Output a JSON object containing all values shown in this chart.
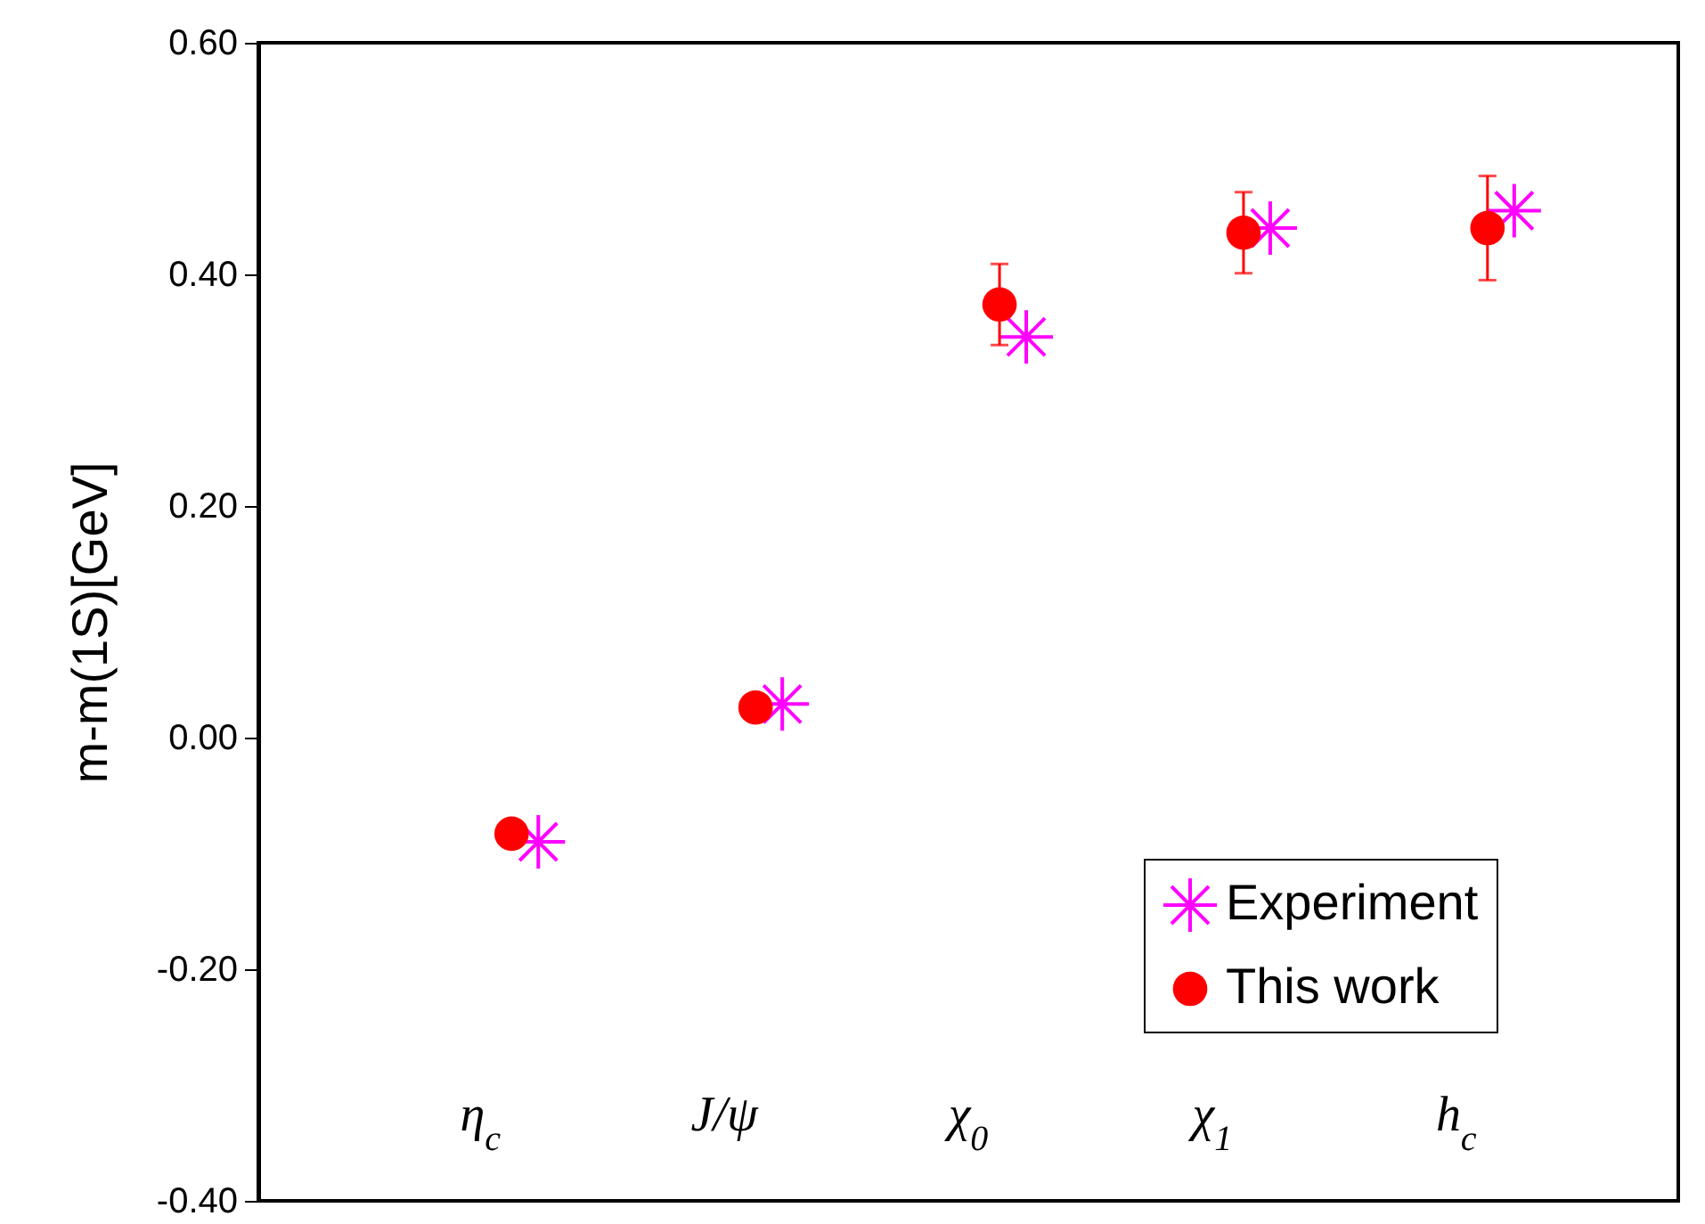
{
  "chart_data": {
    "type": "scatter",
    "ylabel": "m-m(1S)[GeV]",
    "categories": [
      "η$_{c}$",
      "J/ψ",
      "χ$_{0}$",
      "χ$_{1}$",
      "h$_{c}$"
    ],
    "ylim": [
      -0.4,
      0.6
    ],
    "yticks": [
      {
        "value": -0.4,
        "label": "-0.40"
      },
      {
        "value": -0.2,
        "label": "-0.20"
      },
      {
        "value": 0,
        "label": "0.00"
      },
      {
        "value": 0.2,
        "label": "0.20"
      },
      {
        "value": 0.4,
        "label": "0.40"
      },
      {
        "value": 0.6,
        "label": "0.60"
      }
    ],
    "grid": false,
    "legend": "bottom right",
    "series": [
      {
        "name": "Experiment",
        "color": "#ff00ff",
        "marker": "cross",
        "values": [
          -0.09,
          0.029,
          0.346,
          0.44,
          0.455
        ]
      },
      {
        "name": "This work",
        "color": "#ff0000",
        "marker": "circle",
        "values": [
          -0.083,
          0.026,
          0.374,
          0.436,
          0.44
        ],
        "errors": [
          0.01,
          0.01,
          0.035,
          0.035,
          0.045
        ]
      }
    ]
  }
}
